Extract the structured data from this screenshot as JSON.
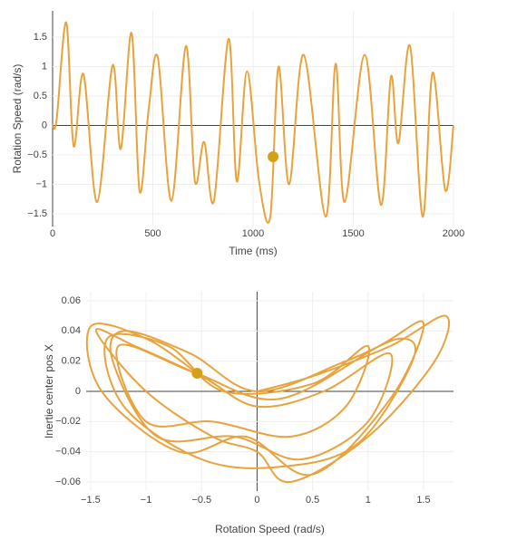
{
  "chart_data": [
    {
      "type": "line",
      "xlabel": "Time (ms)",
      "ylabel": "Rotation Speed (rad/s)",
      "color": "#e8a33d",
      "grid": true,
      "x": [
        0,
        20,
        68,
        105,
        154,
        222,
        299,
        340,
        394,
        434,
        480,
        525,
        593,
        665,
        710,
        756,
        805,
        878,
        919,
        970,
        1030,
        1086,
        1127,
        1180,
        1253,
        1362,
        1412,
        1457,
        1557,
        1638,
        1688,
        1725,
        1783,
        1846,
        1896,
        1959,
        2000
      ],
      "series": [
        {
          "values": [
            0,
            0.1,
            1.75,
            -0.35,
            0.87,
            -1.3,
            1.02,
            -0.4,
            1.57,
            -1.12,
            0.3,
            1.15,
            -1.28,
            1.35,
            -0.95,
            -0.28,
            -1.28,
            1.47,
            -0.95,
            0.92,
            -0.95,
            -1.55,
            1.0,
            -1.0,
            1.2,
            -1.55,
            1.05,
            -1.3,
            1.2,
            -1.35,
            0.83,
            -0.3,
            1.35,
            -1.55,
            0.9,
            -1.1,
            0
          ]
        }
      ],
      "highlight": {
        "x": 1100,
        "y": -0.53,
        "color": "#d4a017"
      },
      "xlim": [
        0,
        2000
      ],
      "xticks": [
        0,
        500,
        1000,
        1500,
        2000
      ],
      "ylim": [
        -1.715,
        1.946
      ],
      "yticks": [
        {
          "value": -1.5,
          "label": "−1.5"
        },
        {
          "value": -1,
          "label": "−1"
        },
        {
          "value": -0.5,
          "label": "−0.5"
        },
        0,
        0.5,
        1,
        1.5
      ]
    },
    {
      "type": "line",
      "xlabel": "Rotation Speed (rad/s)",
      "ylabel": "Inertie center pos X",
      "color": "#e8a33d",
      "grid": true,
      "x": [
        0,
        0.5,
        1.2,
        1.7,
        1.6,
        1.0,
        0.3,
        0,
        -0.4,
        -1.0,
        -1.45,
        -1.1,
        -0.5,
        0,
        0.6,
        1.2,
        1.0,
        0.4,
        -0.2,
        -0.9,
        -1.3,
        -1.2,
        -0.6,
        0,
        0.8,
        1.3,
        1.4,
        0.9,
        0.2,
        -0.5,
        -1.2,
        -1.35,
        -0.8,
        -0.3,
        0.5,
        1.0,
        0.8,
        0.3,
        -0.4,
        -1.0,
        -1.25,
        -0.55,
        0.2,
        1.1,
        1.5,
        1.2,
        0.5,
        -0.1,
        -0.7,
        -1.4,
        -1.5,
        -1.0,
        -0.54
      ],
      "series": [
        {
          "values": [
            0,
            0.01,
            0.03,
            0.05,
            0.02,
            -0.03,
            -0.06,
            -0.04,
            -0.03,
            0,
            0.04,
            0.03,
            0.01,
            -0.01,
            0,
            0.025,
            -0.02,
            -0.045,
            -0.03,
            -0.03,
            0.02,
            0.04,
            0.025,
            0,
            0.02,
            0.035,
            0.02,
            -0.035,
            -0.05,
            -0.045,
            -0.01,
            0.035,
            0.03,
            0,
            0.005,
            0.03,
            -0.01,
            -0.03,
            -0.02,
            -0.02,
            0.03,
            0.012,
            -0.005,
            0.03,
            0.045,
            -0.005,
            -0.055,
            -0.03,
            -0.04,
            0,
            0.043,
            0.035,
            0.012
          ]
        }
      ],
      "highlight": {
        "x": -0.54,
        "y": 0.012,
        "color": "#d4a017"
      },
      "xlim": [
        -1.54,
        1.77
      ],
      "xticks": [
        {
          "value": -1.5,
          "label": "−1.5"
        },
        {
          "value": -1,
          "label": "−1"
        },
        {
          "value": -0.5,
          "label": "−0.5"
        },
        0,
        0.5,
        1,
        1.5
      ],
      "ylim": [
        -0.066,
        0.066
      ],
      "yticks": [
        {
          "value": -0.06,
          "label": "−0.06"
        },
        {
          "value": -0.04,
          "label": "−0.04"
        },
        {
          "value": -0.02,
          "label": "−0.02"
        },
        0,
        0.02,
        0.04,
        0.06
      ]
    }
  ]
}
